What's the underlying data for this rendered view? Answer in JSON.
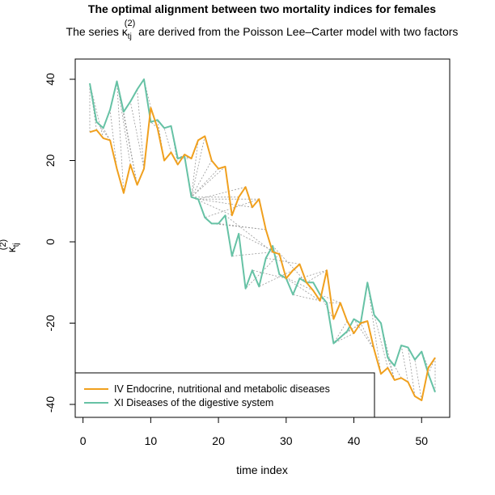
{
  "chart_data": {
    "type": "line",
    "title": "The optimal alignment between two mortality indices for females",
    "subtitle": {
      "pre": "The series ",
      "kappa": "κ",
      "sub": "tj",
      "sup": "(2)",
      "post": " are derived from the Poisson Lee–Carter model with two factors"
    },
    "xlabel": "time index",
    "ylabel": {
      "kappa": "κ",
      "sub": "tj",
      "sup": "(2)"
    },
    "xlim": [
      1,
      52
    ],
    "ylim": [
      -40,
      40
    ],
    "x_ticks": [
      0,
      10,
      20,
      30,
      40,
      50
    ],
    "y_ticks": [
      -40,
      -20,
      0,
      20,
      40
    ],
    "x_tick_labels": [
      "0",
      "10",
      "20",
      "30",
      "40",
      "50"
    ],
    "y_tick_labels": [
      "-40",
      "-20",
      "0",
      "20",
      "40"
    ],
    "grid": false,
    "legend_position": "bottom-left",
    "x": [
      1,
      2,
      3,
      4,
      5,
      6,
      7,
      8,
      9,
      10,
      11,
      12,
      13,
      14,
      15,
      16,
      17,
      18,
      19,
      20,
      21,
      22,
      23,
      24,
      25,
      26,
      27,
      28,
      29,
      30,
      31,
      32,
      33,
      34,
      35,
      36,
      37,
      38,
      39,
      40,
      41,
      42,
      43,
      44,
      45,
      46,
      47,
      48,
      49,
      50,
      51,
      52
    ],
    "series": [
      {
        "name": "IV Endocrine, nutritional and metabolic diseases",
        "color": "#F0A01E",
        "values": [
          27,
          27.5,
          25.5,
          25,
          18,
          12,
          19,
          14,
          18,
          33,
          28,
          20,
          22,
          19,
          21.5,
          20.5,
          25,
          26,
          20,
          18,
          18.5,
          6.5,
          11,
          13.5,
          8.5,
          10.5,
          3,
          -2.5,
          -3,
          -9,
          -7,
          -5.5,
          -10,
          -12,
          -14.5,
          -7,
          -19,
          -15,
          -19.5,
          -22.5,
          -20,
          -19.5,
          -26.5,
          -32.5,
          -31,
          -34,
          -33.5,
          -34.5,
          -38,
          -39,
          -31,
          -28.5
        ]
      },
      {
        "name": "XI Diseases of the digestive system",
        "color": "#66C2A5",
        "values": [
          39,
          29.5,
          28,
          32.5,
          39.5,
          32,
          34.5,
          37.5,
          40,
          29.5,
          30,
          28,
          28.5,
          20.5,
          21,
          11,
          10.5,
          6,
          4.5,
          4.5,
          6.5,
          -3.5,
          2,
          -11.5,
          -7,
          -11,
          -4,
          -1,
          -8,
          -9,
          -13,
          -9,
          -10,
          -10,
          -13,
          -15,
          -25,
          -23.5,
          -22,
          -19,
          -20,
          -10,
          -18,
          -20,
          -28.5,
          -30.5,
          -25.5,
          -26,
          -29,
          -27,
          -32.5,
          -37
        ]
      }
    ],
    "alignment_pairs": [
      [
        1,
        1
      ],
      [
        2,
        1
      ],
      [
        3,
        1
      ],
      [
        4,
        2
      ],
      [
        4,
        3
      ],
      [
        5,
        4
      ],
      [
        6,
        5
      ],
      [
        7,
        5
      ],
      [
        8,
        5
      ],
      [
        8,
        6
      ],
      [
        9,
        7
      ],
      [
        9,
        8
      ],
      [
        10,
        9
      ],
      [
        11,
        10
      ],
      [
        12,
        11
      ],
      [
        13,
        12
      ],
      [
        14,
        13
      ],
      [
        15,
        14
      ],
      [
        16,
        14
      ],
      [
        16,
        15
      ],
      [
        17,
        16
      ],
      [
        18,
        16
      ],
      [
        19,
        16
      ],
      [
        20,
        16
      ],
      [
        21,
        16
      ],
      [
        22,
        16
      ],
      [
        23,
        16
      ],
      [
        24,
        17
      ],
      [
        25,
        17
      ],
      [
        26,
        17
      ],
      [
        26,
        18
      ],
      [
        27,
        19
      ],
      [
        27,
        20
      ],
      [
        28,
        21
      ],
      [
        28,
        22
      ],
      [
        29,
        23
      ],
      [
        29,
        24
      ],
      [
        30,
        25
      ],
      [
        31,
        26
      ],
      [
        32,
        27
      ],
      [
        33,
        28
      ],
      [
        34,
        29
      ],
      [
        35,
        30
      ],
      [
        35,
        31
      ],
      [
        36,
        32
      ],
      [
        36,
        33
      ],
      [
        37,
        34
      ],
      [
        38,
        35
      ],
      [
        38,
        36
      ],
      [
        39,
        37
      ],
      [
        40,
        37
      ],
      [
        41,
        38
      ],
      [
        42,
        39
      ],
      [
        43,
        40
      ],
      [
        43,
        41
      ],
      [
        44,
        42
      ],
      [
        45,
        43
      ],
      [
        46,
        44
      ],
      [
        46,
        45
      ],
      [
        47,
        46
      ],
      [
        48,
        47
      ],
      [
        49,
        48
      ],
      [
        50,
        49
      ],
      [
        51,
        50
      ],
      [
        52,
        51
      ],
      [
        52,
        52
      ]
    ]
  }
}
